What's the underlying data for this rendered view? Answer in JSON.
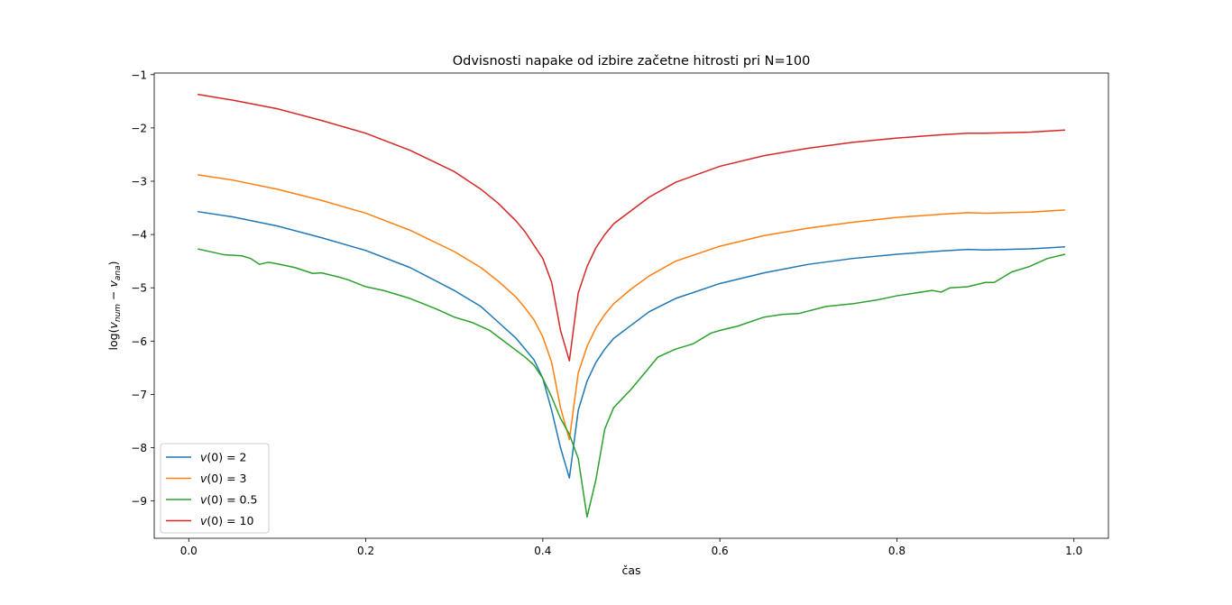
{
  "chart_data": {
    "type": "line",
    "title": "Odvisnosti napake od izbire začetne hitrosti pri N=100",
    "xlabel": "čas",
    "ylabel": "log(v_num − v_ana)",
    "ylabel_parts": {
      "main": "log(",
      "v": "v",
      "num": "num",
      "minus": " − ",
      "ana": "ana",
      "close": ")"
    },
    "xlim": [
      -0.039,
      1.039
    ],
    "ylim": [
      -9.7,
      -0.97
    ],
    "x_ticks": [
      0.0,
      0.2,
      0.4,
      0.6,
      0.8,
      1.0
    ],
    "x_tick_labels": [
      "0.0",
      "0.2",
      "0.4",
      "0.6",
      "0.8",
      "1.0"
    ],
    "y_ticks": [
      -9,
      -8,
      -7,
      -6,
      -5,
      -4,
      -3,
      -2,
      -1
    ],
    "y_tick_labels": [
      "−9",
      "−8",
      "−7",
      "−6",
      "−5",
      "−4",
      "−3",
      "−2",
      "−1"
    ],
    "grid": false,
    "legend_position": "lower-left",
    "series": [
      {
        "name": "v(0) = 2",
        "legend_math": {
          "prefix": "v",
          "arg": "(0) = ",
          "value": "2"
        },
        "color": "#1f77b4",
        "points": [
          [
            0.01,
            -3.57
          ],
          [
            0.05,
            -3.67
          ],
          [
            0.1,
            -3.84
          ],
          [
            0.15,
            -4.06
          ],
          [
            0.2,
            -4.3
          ],
          [
            0.25,
            -4.62
          ],
          [
            0.3,
            -5.05
          ],
          [
            0.33,
            -5.35
          ],
          [
            0.35,
            -5.65
          ],
          [
            0.37,
            -5.95
          ],
          [
            0.38,
            -6.15
          ],
          [
            0.39,
            -6.35
          ],
          [
            0.4,
            -6.7
          ],
          [
            0.41,
            -7.3
          ],
          [
            0.42,
            -8.0
          ],
          [
            0.43,
            -8.57
          ],
          [
            0.44,
            -7.3
          ],
          [
            0.45,
            -6.75
          ],
          [
            0.46,
            -6.4
          ],
          [
            0.47,
            -6.15
          ],
          [
            0.48,
            -5.95
          ],
          [
            0.5,
            -5.7
          ],
          [
            0.52,
            -5.45
          ],
          [
            0.55,
            -5.2
          ],
          [
            0.6,
            -4.92
          ],
          [
            0.65,
            -4.72
          ],
          [
            0.7,
            -4.56
          ],
          [
            0.75,
            -4.45
          ],
          [
            0.8,
            -4.37
          ],
          [
            0.85,
            -4.31
          ],
          [
            0.88,
            -4.28
          ],
          [
            0.9,
            -4.29
          ],
          [
            0.95,
            -4.27
          ],
          [
            0.99,
            -4.23
          ]
        ]
      },
      {
        "name": "v(0) = 3",
        "legend_math": {
          "prefix": "v",
          "arg": "(0) = ",
          "value": "3"
        },
        "color": "#ff7f0e",
        "points": [
          [
            0.01,
            -2.88
          ],
          [
            0.05,
            -2.98
          ],
          [
            0.1,
            -3.15
          ],
          [
            0.15,
            -3.36
          ],
          [
            0.2,
            -3.6
          ],
          [
            0.25,
            -3.92
          ],
          [
            0.3,
            -4.32
          ],
          [
            0.33,
            -4.62
          ],
          [
            0.35,
            -4.88
          ],
          [
            0.37,
            -5.18
          ],
          [
            0.38,
            -5.38
          ],
          [
            0.39,
            -5.6
          ],
          [
            0.4,
            -5.92
          ],
          [
            0.41,
            -6.4
          ],
          [
            0.42,
            -7.25
          ],
          [
            0.43,
            -7.85
          ],
          [
            0.44,
            -6.6
          ],
          [
            0.45,
            -6.1
          ],
          [
            0.46,
            -5.75
          ],
          [
            0.47,
            -5.5
          ],
          [
            0.48,
            -5.3
          ],
          [
            0.5,
            -5.02
          ],
          [
            0.52,
            -4.78
          ],
          [
            0.55,
            -4.5
          ],
          [
            0.6,
            -4.22
          ],
          [
            0.65,
            -4.02
          ],
          [
            0.7,
            -3.88
          ],
          [
            0.75,
            -3.77
          ],
          [
            0.8,
            -3.68
          ],
          [
            0.85,
            -3.62
          ],
          [
            0.88,
            -3.59
          ],
          [
            0.9,
            -3.6
          ],
          [
            0.95,
            -3.58
          ],
          [
            0.99,
            -3.54
          ]
        ]
      },
      {
        "name": "v(0) = 0.5",
        "legend_math": {
          "prefix": "v",
          "arg": "(0) = ",
          "value": "0.5"
        },
        "color": "#2ca02c",
        "points": [
          [
            0.01,
            -4.27
          ],
          [
            0.04,
            -4.38
          ],
          [
            0.06,
            -4.4
          ],
          [
            0.07,
            -4.45
          ],
          [
            0.08,
            -4.56
          ],
          [
            0.09,
            -4.52
          ],
          [
            0.1,
            -4.55
          ],
          [
            0.12,
            -4.62
          ],
          [
            0.14,
            -4.73
          ],
          [
            0.15,
            -4.72
          ],
          [
            0.17,
            -4.8
          ],
          [
            0.18,
            -4.85
          ],
          [
            0.2,
            -4.98
          ],
          [
            0.22,
            -5.05
          ],
          [
            0.25,
            -5.2
          ],
          [
            0.28,
            -5.4
          ],
          [
            0.3,
            -5.55
          ],
          [
            0.32,
            -5.65
          ],
          [
            0.34,
            -5.8
          ],
          [
            0.36,
            -6.05
          ],
          [
            0.38,
            -6.3
          ],
          [
            0.39,
            -6.45
          ],
          [
            0.4,
            -6.7
          ],
          [
            0.41,
            -7.05
          ],
          [
            0.42,
            -7.45
          ],
          [
            0.43,
            -7.75
          ],
          [
            0.44,
            -8.2
          ],
          [
            0.45,
            -9.3
          ],
          [
            0.46,
            -8.6
          ],
          [
            0.47,
            -7.65
          ],
          [
            0.48,
            -7.25
          ],
          [
            0.5,
            -6.9
          ],
          [
            0.52,
            -6.5
          ],
          [
            0.53,
            -6.3
          ],
          [
            0.55,
            -6.15
          ],
          [
            0.57,
            -6.05
          ],
          [
            0.59,
            -5.85
          ],
          [
            0.6,
            -5.8
          ],
          [
            0.62,
            -5.72
          ],
          [
            0.65,
            -5.55
          ],
          [
            0.67,
            -5.5
          ],
          [
            0.69,
            -5.48
          ],
          [
            0.72,
            -5.35
          ],
          [
            0.75,
            -5.3
          ],
          [
            0.78,
            -5.22
          ],
          [
            0.8,
            -5.15
          ],
          [
            0.82,
            -5.1
          ],
          [
            0.84,
            -5.05
          ],
          [
            0.85,
            -5.08
          ],
          [
            0.86,
            -5.0
          ],
          [
            0.88,
            -4.98
          ],
          [
            0.9,
            -4.9
          ],
          [
            0.91,
            -4.9
          ],
          [
            0.93,
            -4.7
          ],
          [
            0.95,
            -4.6
          ],
          [
            0.97,
            -4.45
          ],
          [
            0.99,
            -4.37
          ]
        ]
      },
      {
        "name": "v(0) = 10",
        "legend_math": {
          "prefix": "v",
          "arg": "(0) = ",
          "value": "10"
        },
        "color": "#d62728",
        "points": [
          [
            0.01,
            -1.37
          ],
          [
            0.05,
            -1.48
          ],
          [
            0.1,
            -1.64
          ],
          [
            0.15,
            -1.86
          ],
          [
            0.2,
            -2.1
          ],
          [
            0.25,
            -2.42
          ],
          [
            0.3,
            -2.82
          ],
          [
            0.33,
            -3.15
          ],
          [
            0.35,
            -3.42
          ],
          [
            0.37,
            -3.75
          ],
          [
            0.38,
            -3.95
          ],
          [
            0.39,
            -4.2
          ],
          [
            0.4,
            -4.45
          ],
          [
            0.41,
            -4.9
          ],
          [
            0.42,
            -5.8
          ],
          [
            0.43,
            -6.37
          ],
          [
            0.44,
            -5.1
          ],
          [
            0.45,
            -4.6
          ],
          [
            0.46,
            -4.25
          ],
          [
            0.47,
            -4.0
          ],
          [
            0.48,
            -3.8
          ],
          [
            0.5,
            -3.55
          ],
          [
            0.52,
            -3.3
          ],
          [
            0.55,
            -3.02
          ],
          [
            0.6,
            -2.72
          ],
          [
            0.65,
            -2.52
          ],
          [
            0.7,
            -2.38
          ],
          [
            0.75,
            -2.27
          ],
          [
            0.8,
            -2.19
          ],
          [
            0.85,
            -2.13
          ],
          [
            0.88,
            -2.1
          ],
          [
            0.9,
            -2.1
          ],
          [
            0.95,
            -2.08
          ],
          [
            0.99,
            -2.04
          ]
        ]
      }
    ]
  }
}
